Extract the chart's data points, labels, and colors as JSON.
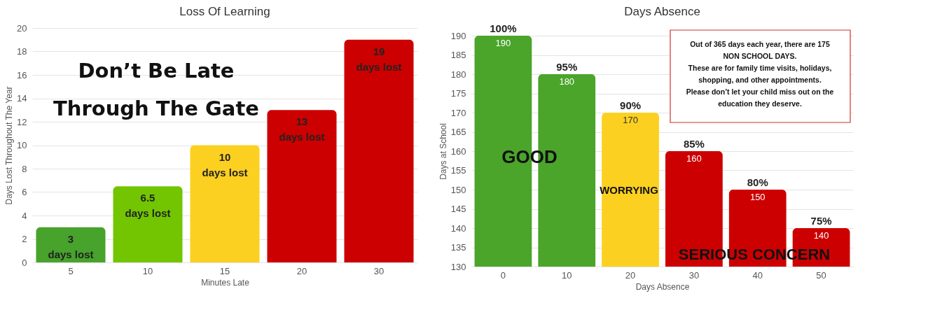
{
  "chart_data": [
    {
      "type": "bar",
      "title": "Loss Of Learning",
      "xlabel": "Minutes Late",
      "ylabel": "Days Lost Throughout The Year",
      "categories": [
        "5",
        "10",
        "15",
        "20",
        "30"
      ],
      "values": [
        3,
        6.5,
        10,
        13,
        19
      ],
      "colors": [
        "#47a32b",
        "#72c500",
        "#fcd020",
        "#cc0000",
        "#cc0000"
      ],
      "value_labels": [
        "3\ndays lost",
        "6.5\ndays lost",
        "10\ndays lost",
        "13\ndays lost",
        "19\ndays lost"
      ],
      "ylim": [
        0,
        20
      ],
      "yticks": [
        0,
        2,
        4,
        6,
        8,
        10,
        12,
        14,
        16,
        18,
        20
      ],
      "grid": "y",
      "annotations": [
        "Don’t Be Late\nThrough The Gate"
      ]
    },
    {
      "type": "bar",
      "title": "Days Absence",
      "xlabel": "Days Absence",
      "ylabel": "Days at School",
      "categories": [
        "0",
        "10",
        "20",
        "30",
        "40",
        "50"
      ],
      "values": [
        190,
        180,
        170,
        160,
        150,
        140
      ],
      "colors": [
        "#4aa52a",
        "#4aa52a",
        "#fcd020",
        "#cc0000",
        "#cc0000",
        "#cc0000"
      ],
      "data_labels": true,
      "ylim": [
        130,
        190
      ],
      "yticks": [
        130,
        135,
        140,
        145,
        150,
        155,
        160,
        165,
        170,
        175,
        180,
        185,
        190
      ],
      "grid": "y",
      "annotations": [
        "Out of 365 days each year, there are 175\nNON SCHOOL DAYS.\nThese are for family time visits, holidays,\nshopping,  and other appointments.\n\nPlease don’t let your child miss out on the\neducation they deserve.",
        "GOOD",
        "WORRYING",
        "SERIOUS CONCERN",
        {
          "text": "100%",
          "x": "0",
          "y": 190
        },
        {
          "text": "95%",
          "x": "10",
          "y": 180
        },
        {
          "text": "90%",
          "x": "20",
          "y": 170
        },
        {
          "text": "85%",
          "x": "30",
          "y": 160
        },
        {
          "text": "80%",
          "x": "40",
          "y": 150
        },
        {
          "text": "75%",
          "x": "50",
          "y": 140
        }
      ]
    }
  ]
}
